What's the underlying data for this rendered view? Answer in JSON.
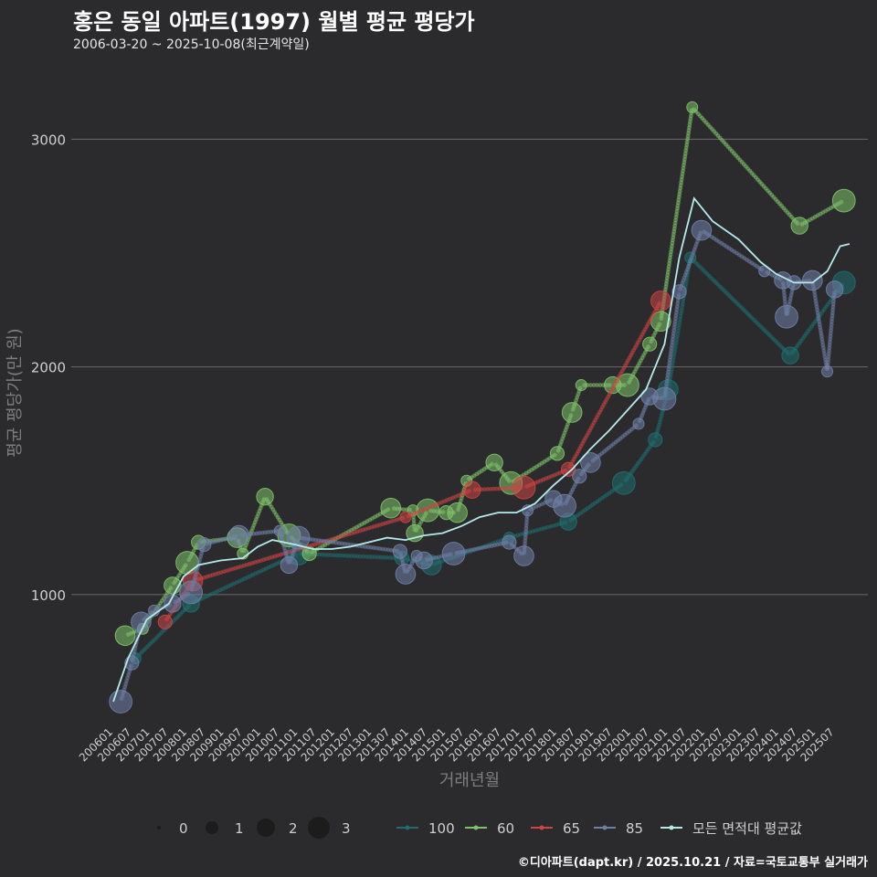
{
  "chart_data": {
    "type": "scatter",
    "title": "홍은 동일 아파트(1997) 월별 평균 평당가",
    "subtitle": "2006-03-20 ~ 2025-10-08(최근계약일)",
    "xlabel": "거래년월",
    "ylabel": "평균 평당가(만 원)",
    "ylim": [
      450,
      3250
    ],
    "yticks": [
      1000,
      2000,
      3000
    ],
    "xlim": [
      2006.0,
      2026.3
    ],
    "xticks": [
      "200601",
      "200607",
      "200701",
      "200707",
      "200801",
      "200807",
      "200901",
      "200907",
      "201001",
      "201007",
      "201101",
      "201107",
      "201201",
      "201207",
      "201301",
      "201307",
      "201401",
      "201407",
      "201501",
      "201507",
      "201601",
      "201607",
      "201701",
      "201707",
      "201801",
      "201807",
      "201901",
      "201907",
      "202001",
      "202007",
      "202101",
      "202107",
      "202201",
      "202207",
      "202301",
      "202307",
      "202401",
      "202407",
      "202501",
      "202507"
    ],
    "grid": true,
    "size_legend": {
      "labels": [
        "0",
        "1",
        "2",
        "3"
      ]
    },
    "series": [
      {
        "name": "100",
        "color": "#1f6e6e",
        "points": [
          [
            2006.7,
            720
          ],
          [
            2008.2,
            960
          ],
          [
            2011.1,
            1180
          ],
          [
            2013.9,
            1160
          ],
          [
            2014.7,
            1130
          ],
          [
            2016.8,
            1250
          ],
          [
            2018.4,
            1320
          ],
          [
            2019.9,
            1490
          ],
          [
            2020.75,
            1680
          ],
          [
            2021.1,
            1900
          ],
          [
            2021.7,
            2480
          ],
          [
            2024.4,
            2050
          ],
          [
            2025.85,
            2370
          ]
        ]
      },
      {
        "name": "60",
        "color": "#7fc26a",
        "points": [
          [
            2006.42,
            820
          ],
          [
            2006.9,
            850
          ],
          [
            2007.7,
            1040
          ],
          [
            2008.1,
            1140
          ],
          [
            2008.4,
            1230
          ],
          [
            2009.45,
            1250
          ],
          [
            2009.6,
            1180
          ],
          [
            2010.2,
            1430
          ],
          [
            2010.85,
            1260
          ],
          [
            2011.4,
            1180
          ],
          [
            2013.6,
            1380
          ],
          [
            2014.2,
            1370
          ],
          [
            2014.25,
            1270
          ],
          [
            2014.6,
            1370
          ],
          [
            2015.1,
            1360
          ],
          [
            2015.4,
            1360
          ],
          [
            2015.65,
            1500
          ],
          [
            2016.4,
            1580
          ],
          [
            2016.85,
            1490
          ],
          [
            2018.1,
            1620
          ],
          [
            2018.5,
            1800
          ],
          [
            2018.75,
            1920
          ],
          [
            2019.6,
            1920
          ],
          [
            2020.0,
            1920
          ],
          [
            2020.6,
            2100
          ],
          [
            2020.9,
            2200
          ],
          [
            2021.75,
            3140
          ],
          [
            2024.65,
            2620
          ],
          [
            2025.85,
            2730
          ]
        ]
      },
      {
        "name": "65",
        "color": "#cc4444",
        "points": [
          [
            2007.5,
            880
          ],
          [
            2008.25,
            1060
          ],
          [
            2014.0,
            1340
          ],
          [
            2015.8,
            1460
          ],
          [
            2017.2,
            1470
          ],
          [
            2018.4,
            1550
          ],
          [
            2020.9,
            2290
          ]
        ]
      },
      {
        "name": "85",
        "color": "#6f7fa6",
        "points": [
          [
            2006.3,
            530
          ],
          [
            2006.6,
            700
          ],
          [
            2006.85,
            880
          ],
          [
            2007.2,
            930
          ],
          [
            2007.7,
            960
          ],
          [
            2008.2,
            1010
          ],
          [
            2008.55,
            1220
          ],
          [
            2009.5,
            1260
          ],
          [
            2010.6,
            1280
          ],
          [
            2010.85,
            1130
          ],
          [
            2011.1,
            1250
          ],
          [
            2013.85,
            1190
          ],
          [
            2014.0,
            1090
          ],
          [
            2014.3,
            1170
          ],
          [
            2014.5,
            1150
          ],
          [
            2015.3,
            1180
          ],
          [
            2016.8,
            1230
          ],
          [
            2017.2,
            1170
          ],
          [
            2017.3,
            1370
          ],
          [
            2018.0,
            1420
          ],
          [
            2018.3,
            1390
          ],
          [
            2018.7,
            1520
          ],
          [
            2019.0,
            1580
          ],
          [
            2020.3,
            1750
          ],
          [
            2020.6,
            1870
          ],
          [
            2021.0,
            1860
          ],
          [
            2021.4,
            2330
          ],
          [
            2022.0,
            2600
          ],
          [
            2023.7,
            2420
          ],
          [
            2024.2,
            2380
          ],
          [
            2024.3,
            2220
          ],
          [
            2024.5,
            2370
          ],
          [
            2025.0,
            2380
          ],
          [
            2025.4,
            1980
          ],
          [
            2025.6,
            2340
          ]
        ]
      },
      {
        "name": "모든 면적대 평균값",
        "color": "#b6eaea",
        "line": [
          [
            2006.1,
            530
          ],
          [
            2006.5,
            720
          ],
          [
            2007.0,
            890
          ],
          [
            2007.6,
            960
          ],
          [
            2008.0,
            1080
          ],
          [
            2008.4,
            1130
          ],
          [
            2009.0,
            1150
          ],
          [
            2009.6,
            1160
          ],
          [
            2010.0,
            1210
          ],
          [
            2010.4,
            1240
          ],
          [
            2011.0,
            1220
          ],
          [
            2011.5,
            1200
          ],
          [
            2012.0,
            1200
          ],
          [
            2012.5,
            1210
          ],
          [
            2013.0,
            1230
          ],
          [
            2013.5,
            1250
          ],
          [
            2014.0,
            1240
          ],
          [
            2014.5,
            1260
          ],
          [
            2015.0,
            1270
          ],
          [
            2015.5,
            1300
          ],
          [
            2016.0,
            1340
          ],
          [
            2016.5,
            1360
          ],
          [
            2017.0,
            1360
          ],
          [
            2017.5,
            1400
          ],
          [
            2018.0,
            1480
          ],
          [
            2018.5,
            1550
          ],
          [
            2019.0,
            1640
          ],
          [
            2019.5,
            1720
          ],
          [
            2020.0,
            1810
          ],
          [
            2020.5,
            1900
          ],
          [
            2021.0,
            2100
          ],
          [
            2021.4,
            2480
          ],
          [
            2021.8,
            2740
          ],
          [
            2022.3,
            2640
          ],
          [
            2023.0,
            2560
          ],
          [
            2023.6,
            2460
          ],
          [
            2024.0,
            2410
          ],
          [
            2024.5,
            2370
          ],
          [
            2025.0,
            2370
          ],
          [
            2025.4,
            2420
          ],
          [
            2025.75,
            2530
          ],
          [
            2026.0,
            2540
          ]
        ]
      }
    ]
  },
  "footer": "©디아파트(dapt.kr) / 2025.10.21 / 자료=국토교통부 실거래가"
}
